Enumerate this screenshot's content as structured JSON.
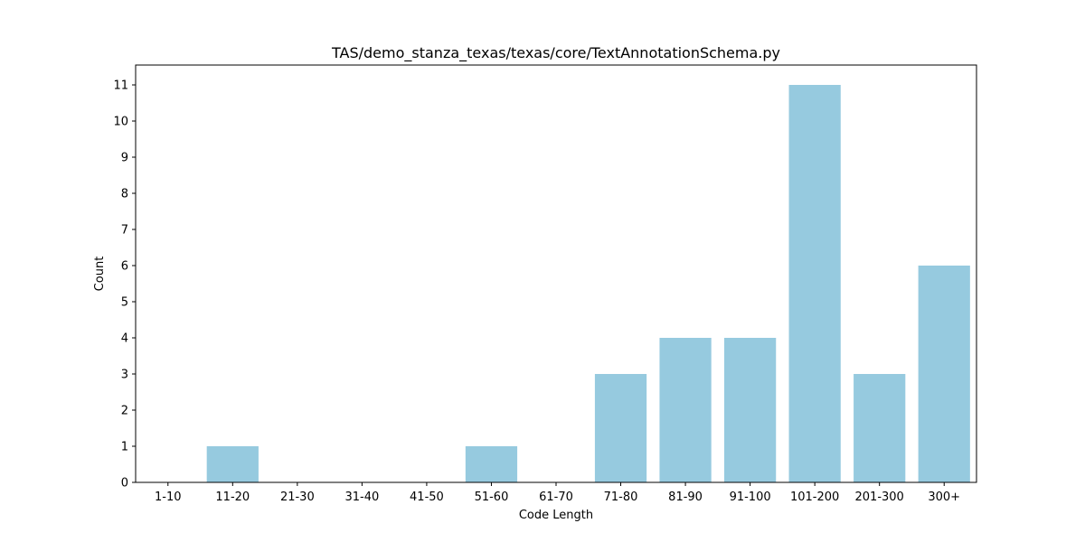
{
  "chart_data": {
    "type": "bar",
    "title": "TAS/demo_stanza_texas/texas/core/TextAnnotationSchema.py",
    "xlabel": "Code Length",
    "ylabel": "Count",
    "categories": [
      "1-10",
      "11-20",
      "21-30",
      "31-40",
      "41-50",
      "51-60",
      "61-70",
      "71-80",
      "81-90",
      "91-100",
      "101-200",
      "201-300",
      "300+"
    ],
    "values": [
      0,
      1,
      0,
      0,
      0,
      1,
      0,
      3,
      4,
      4,
      11,
      3,
      6
    ],
    "ylim": [
      0,
      11.55
    ],
    "yticks": [
      0,
      1,
      2,
      3,
      4,
      5,
      6,
      7,
      8,
      9,
      10,
      11
    ],
    "grid": false,
    "bar_color": "#96cadf"
  }
}
